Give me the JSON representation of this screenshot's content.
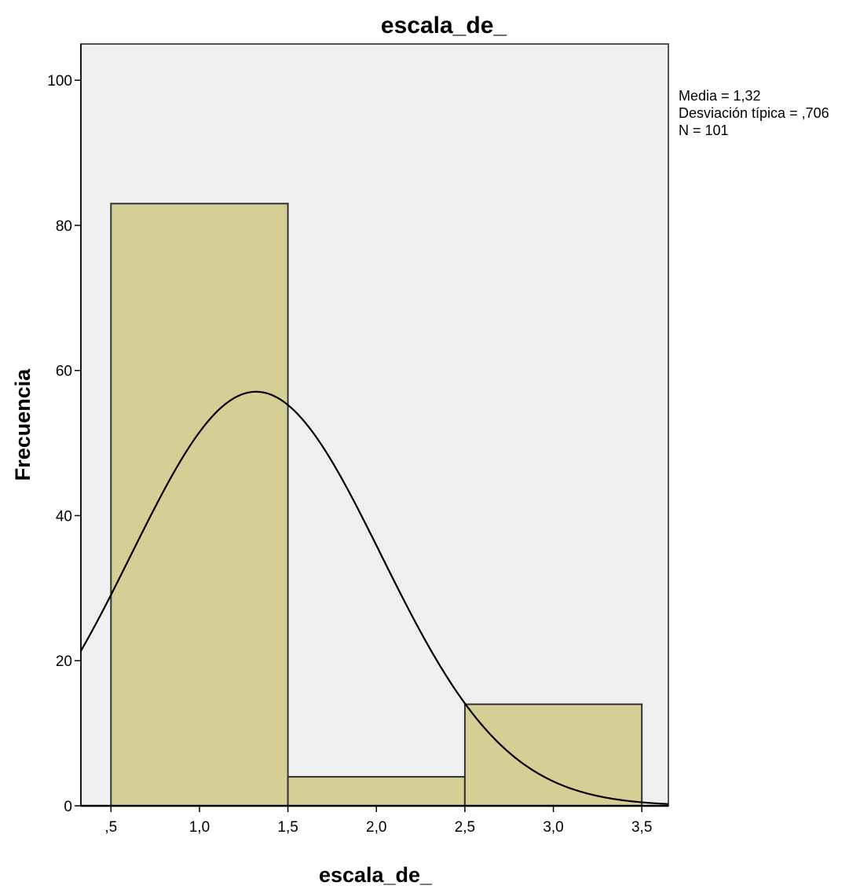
{
  "chart_data": {
    "type": "bar",
    "title": "escala_de_",
    "xlabel": "escala_de_",
    "ylabel": "Frecuencia",
    "bins": [
      {
        "start": 0.5,
        "end": 1.5,
        "value": 83
      },
      {
        "start": 1.5,
        "end": 2.5,
        "value": 4
      },
      {
        "start": 2.5,
        "end": 3.5,
        "value": 14
      }
    ],
    "x_ticks": [
      {
        "value": 0.5,
        "label": ",5"
      },
      {
        "value": 1.0,
        "label": "1,0"
      },
      {
        "value": 1.5,
        "label": "1,5"
      },
      {
        "value": 2.0,
        "label": "2,0"
      },
      {
        "value": 2.5,
        "label": "2,5"
      },
      {
        "value": 3.0,
        "label": "3,0"
      },
      {
        "value": 3.5,
        "label": "3,5"
      }
    ],
    "y_ticks": [
      {
        "value": 0,
        "label": "0"
      },
      {
        "value": 20,
        "label": "20"
      },
      {
        "value": 40,
        "label": "40"
      },
      {
        "value": 60,
        "label": "60"
      },
      {
        "value": 80,
        "label": "80"
      },
      {
        "value": 100,
        "label": "100"
      }
    ],
    "xlim": [
      0.33,
      3.65
    ],
    "ylim": [
      0,
      105
    ],
    "normal_curve": {
      "mean": 1.32,
      "sd": 0.706,
      "n": 101,
      "bin_width": 1
    },
    "stats": [
      "Media = 1,32",
      "Desviación típica = ,706",
      "N = 101"
    ],
    "colors": {
      "bar_fill": "#d6cf95",
      "bar_stroke": "#333333",
      "plot_bg": "#efefef",
      "curve": "#000000"
    },
    "grid": false
  }
}
